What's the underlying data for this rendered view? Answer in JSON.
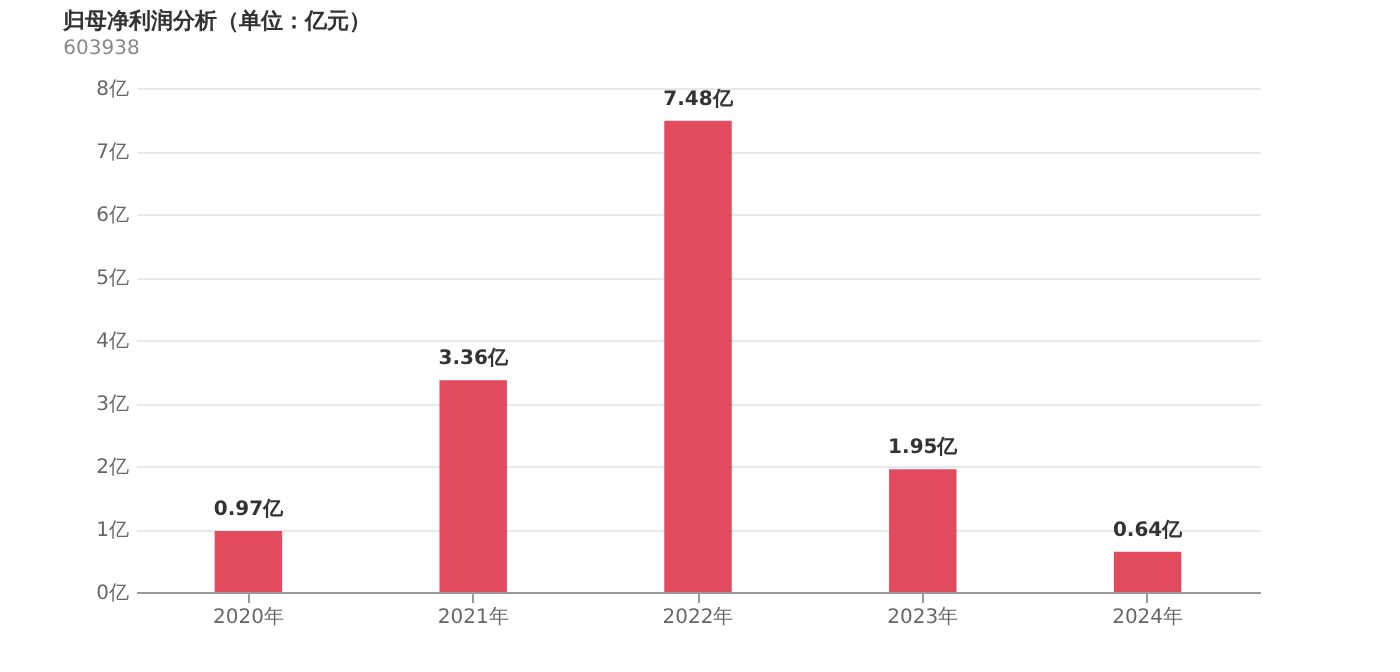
{
  "chart_data": {
    "type": "bar",
    "title": "归母净利润分析（单位：亿元）",
    "subtitle": "603938",
    "categories": [
      "2020年",
      "2021年",
      "2022年",
      "2023年",
      "2024年"
    ],
    "values": [
      0.97,
      3.36,
      7.48,
      1.95,
      0.64
    ],
    "value_labels": [
      "0.97亿",
      "3.36亿",
      "7.48亿",
      "1.95亿",
      "0.64亿"
    ],
    "color": "#e24a5e",
    "ylim": [
      0,
      8
    ],
    "yticks": [
      {
        "value": 0,
        "label": "0亿"
      },
      {
        "value": 1,
        "label": "1亿"
      },
      {
        "value": 2,
        "label": "2亿"
      },
      {
        "value": 3,
        "label": "3亿"
      },
      {
        "value": 4,
        "label": "4亿"
      },
      {
        "value": 5,
        "label": "5亿"
      },
      {
        "value": 6,
        "label": "6亿"
      },
      {
        "value": 7,
        "label": "7亿"
      },
      {
        "value": 8,
        "label": "8亿"
      }
    ],
    "grid": "y"
  }
}
